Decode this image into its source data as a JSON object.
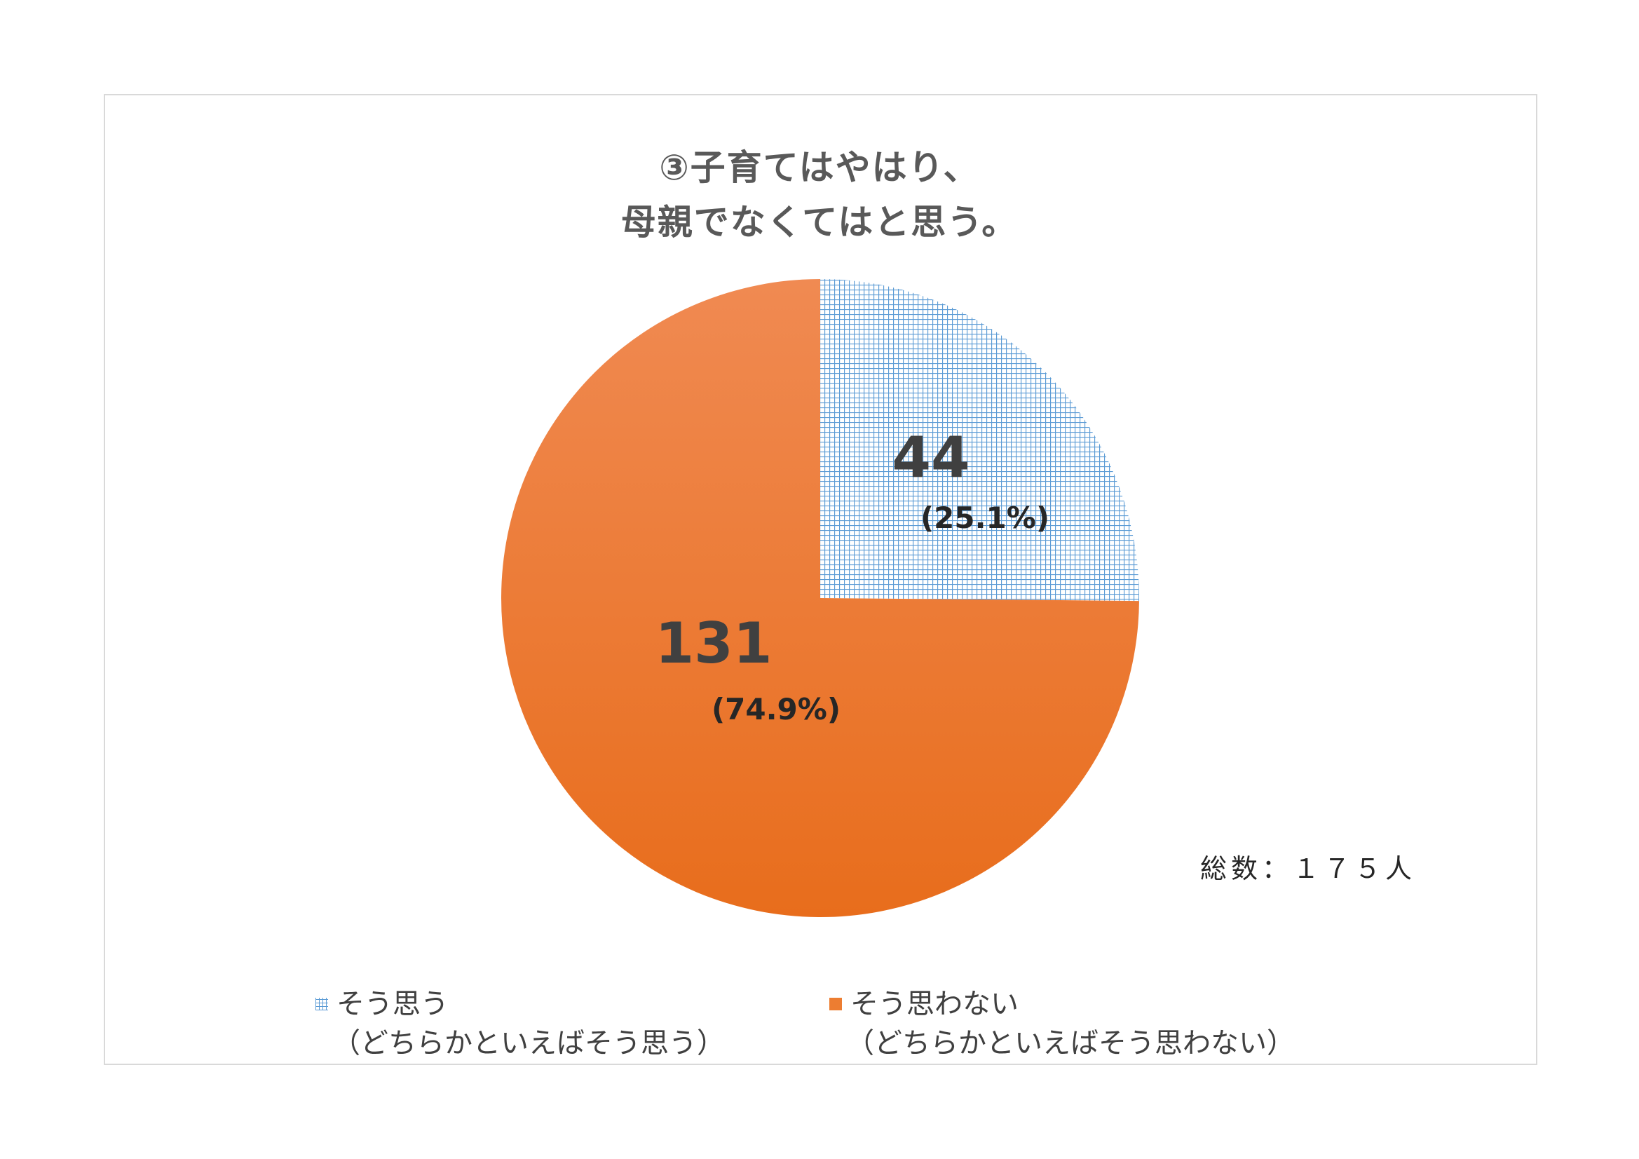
{
  "title": {
    "line1": "③子育てはやはり、",
    "line2": "母親でなくてはと思う。"
  },
  "total_note": "総数：１７５人",
  "colors": {
    "series1": "#5b9bd5",
    "series2": "#ed7d31",
    "text": "#404040"
  },
  "chart_data": {
    "type": "pie",
    "title": "③子育てはやはり、母親でなくてはと思う。",
    "slices": [
      {
        "label": "そう思う（どちらかといえばそう思う）",
        "value": 44,
        "percent_label": "(25.1%)",
        "pattern": "grid",
        "color": "#5b9bd5"
      },
      {
        "label": "そう思わない（どちらかといえばそう思わない）",
        "value": 131,
        "percent_label": "(74.9%)",
        "pattern": "solid",
        "color": "#ed7d31"
      }
    ],
    "total": 175,
    "legend": "bottom"
  },
  "legend": [
    {
      "line1": "そう思う",
      "line2": "（どちらかといえばそう思う）"
    },
    {
      "line1": "そう思わない",
      "line2": "（どちらかといえばそう思わない）"
    }
  ]
}
